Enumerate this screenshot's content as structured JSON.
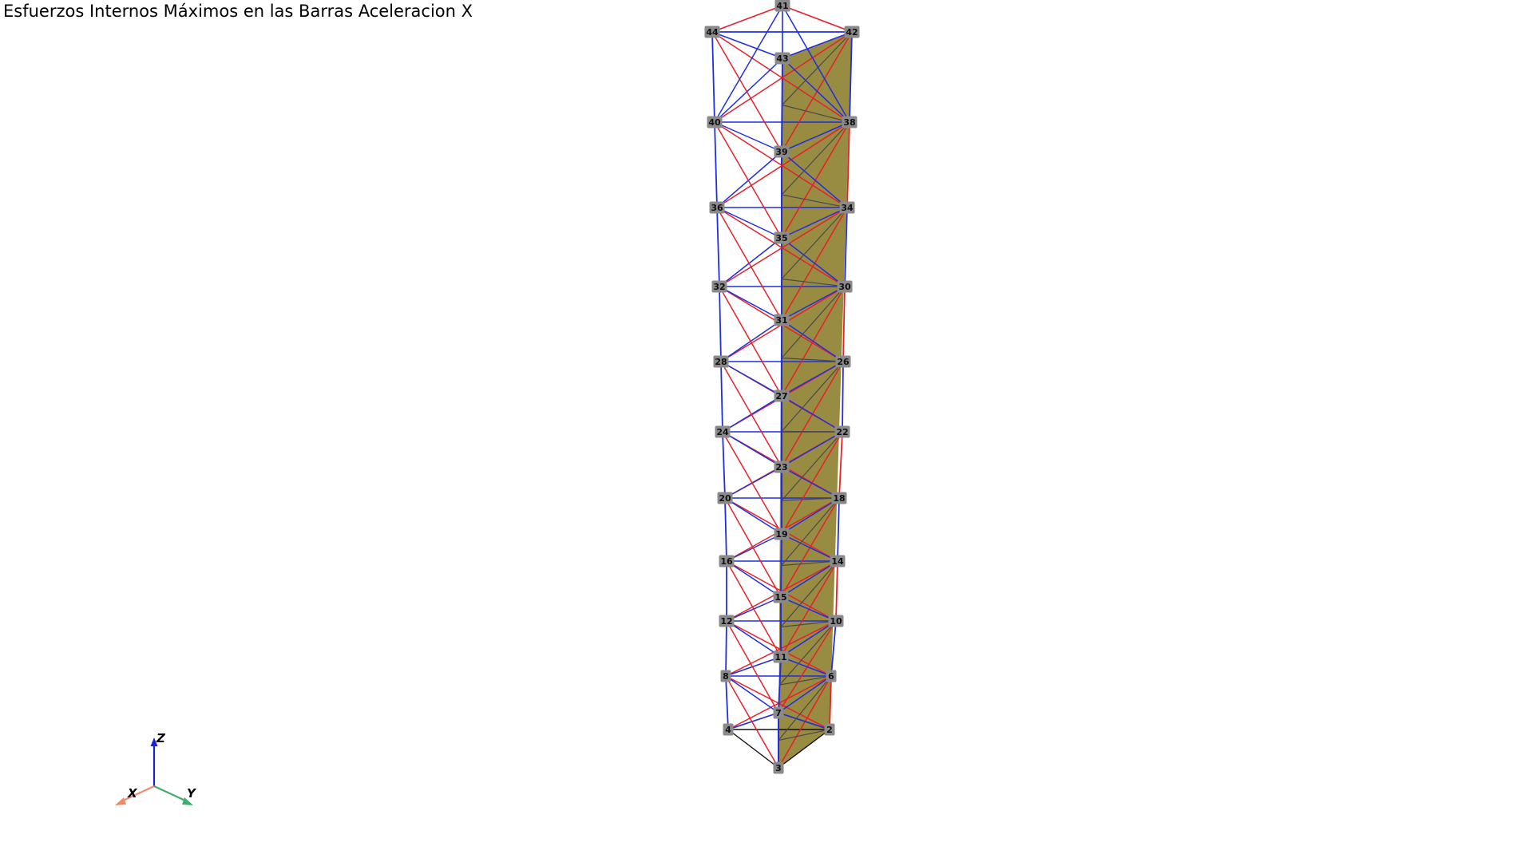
{
  "title": "Esfuerzos Internos Máximos en las Barras Aceleracion X",
  "colors": {
    "tension": "#e8202a",
    "compression": "#1f2fe0",
    "neutral": "#111111",
    "panel_fill": "#8f8132",
    "node_label_bg": "#8a8a8a",
    "node_label_text": "#111111",
    "axis_x": "#f08a6a",
    "axis_y": "#3fae6a",
    "axis_z": "#1a22d8"
  },
  "axes": {
    "x": "X",
    "y": "Y",
    "z": "Z"
  },
  "nodes": [
    "2",
    "3",
    "4",
    "6",
    "7",
    "8",
    "10",
    "11",
    "12",
    "14",
    "15",
    "16",
    "18",
    "19",
    "20",
    "22",
    "23",
    "24",
    "26",
    "27",
    "28",
    "30",
    "31",
    "32",
    "34",
    "35",
    "36",
    "38",
    "39",
    "40",
    "41",
    "42",
    "43",
    "44"
  ]
}
